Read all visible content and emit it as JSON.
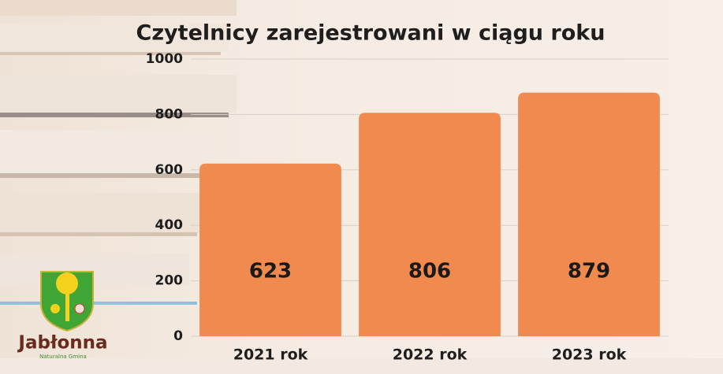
{
  "chart_data": {
    "type": "bar",
    "title": "Czytelnicy zarejestrowani w ciągu roku",
    "categories": [
      "2021 rok",
      "2022 rok",
      "2023 rok"
    ],
    "values": [
      623,
      806,
      879
    ],
    "color": "#f08a4f",
    "ylim": [
      0,
      1000
    ],
    "yticks": [
      0,
      200,
      400,
      600,
      800,
      1000
    ],
    "grid": true
  },
  "logo": {
    "name": "Jabłonna",
    "tagline": "Naturalna Gmina"
  }
}
